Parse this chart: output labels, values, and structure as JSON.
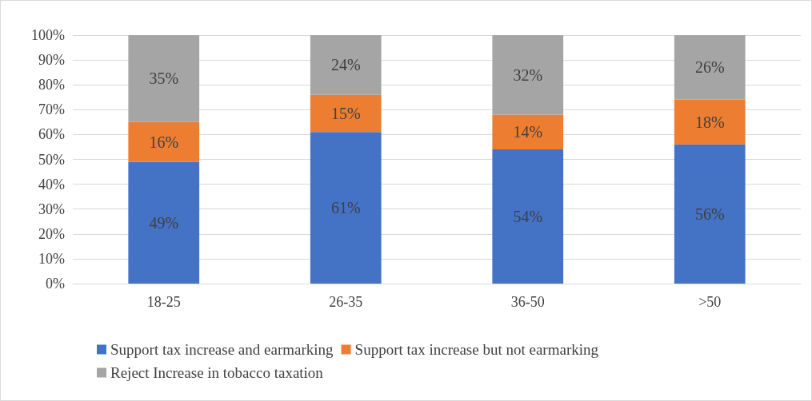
{
  "chart_data": {
    "type": "bar",
    "stacked": true,
    "categories": [
      "18-25",
      "26-35",
      "36-50",
      ">50"
    ],
    "series": [
      {
        "name": "Support tax increase and earmarking",
        "color": "#4472c4",
        "values": [
          49,
          61,
          54,
          56
        ],
        "value_labels": [
          "49%",
          "61%",
          "54%",
          "56%"
        ]
      },
      {
        "name": "Support tax increase but not earmarking",
        "color": "#ed7d31",
        "values": [
          16,
          15,
          14,
          18
        ],
        "value_labels": [
          "16%",
          "15%",
          "14%",
          "18%"
        ]
      },
      {
        "name": "Reject Increase in tobacco taxation",
        "color": "#a5a5a5",
        "values": [
          35,
          24,
          32,
          26
        ],
        "value_labels": [
          "35%",
          "24%",
          "32%",
          "26%"
        ]
      }
    ],
    "ylim": [
      0,
      100
    ],
    "yticks": [
      {
        "value": 0,
        "label": "0%"
      },
      {
        "value": 10,
        "label": "10%"
      },
      {
        "value": 20,
        "label": "20%"
      },
      {
        "value": 30,
        "label": "30%"
      },
      {
        "value": 40,
        "label": "40%"
      },
      {
        "value": 50,
        "label": "50%"
      },
      {
        "value": 60,
        "label": "60%"
      },
      {
        "value": 70,
        "label": "70%"
      },
      {
        "value": 80,
        "label": "80%"
      },
      {
        "value": 90,
        "label": "90%"
      },
      {
        "value": 100,
        "label": "100%"
      }
    ],
    "grid": "y",
    "legend": "bottom"
  }
}
